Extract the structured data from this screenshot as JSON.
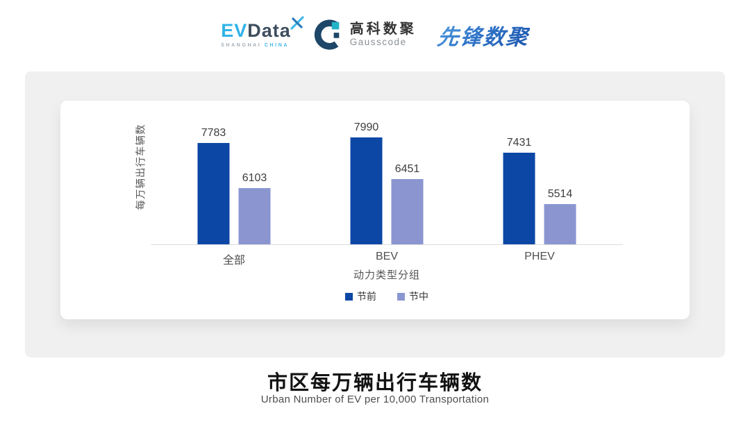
{
  "header": {
    "evdata": {
      "ev": "EV",
      "data": "Data",
      "sub_gray": "SHANGHAI",
      "sub_blue": "CHINA"
    },
    "gausscode": {
      "cn": "高科数聚",
      "en": "Gausscode"
    },
    "pioneer": {
      "text": "先锋数聚"
    }
  },
  "chart_data": {
    "type": "bar",
    "categories": [
      "全部",
      "BEV",
      "PHEV"
    ],
    "series": [
      {
        "name": "节前",
        "color": "#0c47a6",
        "values": [
          7783,
          7990,
          7431
        ]
      },
      {
        "name": "节中",
        "color": "#8b96d1",
        "values": [
          6103,
          6451,
          5514
        ]
      }
    ],
    "title": "",
    "xlabel": "动力类型分组",
    "ylabel": "每万辆出行车辆数",
    "ylim": [
      4000,
      9400
    ],
    "grid": false,
    "legend_position": "bottom",
    "value_labels": true
  },
  "footer": {
    "title": "市区每万辆出行车辆数",
    "subtitle": "Urban Number of EV per 10,000 Transportation"
  },
  "colors": {
    "pre_holiday": "#0c47a6",
    "mid_holiday": "#8b96d1",
    "panel_bg": "#f0f0f0",
    "card_bg": "#ffffff",
    "axis_line": "#dcdcdc"
  }
}
